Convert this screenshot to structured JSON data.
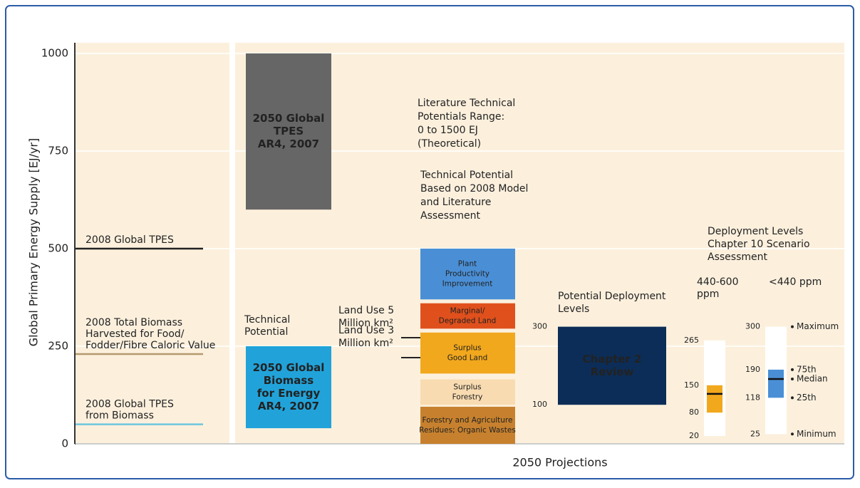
{
  "chart_data": {
    "type": "range-bar",
    "y_label": "Global Primary Energy Supply [EJ/yr]",
    "x_label": "2050 Projections",
    "ylim": [
      0,
      1000
    ],
    "yticks": [
      0,
      250,
      500,
      750,
      1000
    ],
    "references": [
      {
        "name": [
          "2008 Global TPES"
        ],
        "value": 500,
        "color": "#222222"
      },
      {
        "name": [
          "2008 Total Biomass",
          "Harvested for Food/",
          "Fodder/Fibre Caloric Value"
        ],
        "value": 230,
        "color": "#b59a6e"
      },
      {
        "name": [
          "2008 Global TPES",
          "from Biomass"
        ],
        "value": 50,
        "color": "#6ec6de"
      }
    ],
    "bars": [
      {
        "label": [
          "2050 Global",
          "TPES",
          "AR4, 2007"
        ],
        "range": [
          600,
          1000
        ],
        "color": "#666666"
      },
      {
        "label": [
          "2050 Global",
          "Biomass",
          "for Energy",
          "AR4, 2007"
        ],
        "range": [
          40,
          250
        ],
        "color": "#21a3da"
      }
    ],
    "technical_potential_label": [
      "Technical",
      "Potential"
    ],
    "literature_note": [
      "Literature Technical",
      "Potentials Range:",
      "0 to 1500 EJ",
      "(Theoretical)"
    ],
    "potential_title": [
      "Technical Potential",
      "Based on 2008 Model",
      "and Literature",
      "Assessment"
    ],
    "segments": [
      {
        "label": [
          "Forestry and Agriculture",
          "Residues; Organic Wastes"
        ],
        "range": [
          0,
          95
        ],
        "color": "#c7812e",
        "text_color": "#ffffff"
      },
      {
        "label": [
          "Surplus",
          "Forestry"
        ],
        "range": [
          100,
          165
        ],
        "color": "#f8dbb0",
        "text_color": "#333333"
      },
      {
        "label": [
          "Surplus",
          "Good Land"
        ],
        "range": [
          180,
          285
        ],
        "color": "#f2a81d",
        "text_color": "#333333"
      },
      {
        "label": [
          "Marginal/",
          "Degraded Land"
        ],
        "range": [
          295,
          360
        ],
        "color": "#e0501c",
        "text_color": "#ffffff"
      },
      {
        "label": [
          "Plant",
          "Productivity",
          "Improvement"
        ],
        "range": [
          370,
          500
        ],
        "color": "#4a8fd6",
        "text_color": "#ffffff"
      }
    ],
    "land_use": [
      [
        "Land Use 5",
        "Million km²"
      ],
      [
        "Land Use 3",
        "Million km²"
      ]
    ],
    "deployment_title": [
      "Potential Deployment",
      "Levels"
    ],
    "review": {
      "label": [
        "Chapter 2",
        "Review"
      ],
      "range": [
        100,
        300
      ],
      "color": "#0c2d57"
    },
    "scenario_title": [
      "Deployment Levels",
      "Chapter 10 Scenario",
      "Assessment"
    ],
    "boxplots": [
      {
        "name": [
          "440-600",
          "ppm"
        ],
        "min": 20,
        "q1": 80,
        "median": 128,
        "q3": 150,
        "max": 265,
        "color": "#f2a81d"
      },
      {
        "name": [
          "<440 ppm"
        ],
        "min": 25,
        "q1": 118,
        "median": 166,
        "q3": 190,
        "max": 300,
        "color": "#4a8fd6"
      }
    ],
    "stat_labels": [
      "Maximum",
      "75th",
      "Median",
      "25th",
      "Minimum"
    ]
  }
}
